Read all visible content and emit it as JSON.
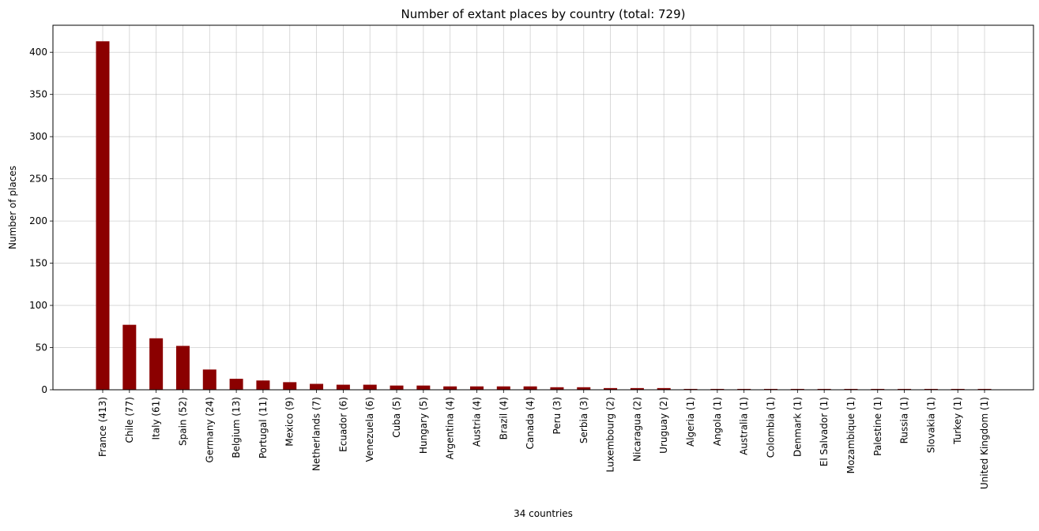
{
  "chart_data": {
    "type": "bar",
    "title": "Number of extant places by country (total: 729)",
    "xlabel": "34 countries",
    "ylabel": "Number of places",
    "ylim": [
      0,
      432
    ],
    "yticks": [
      0,
      50,
      100,
      150,
      200,
      250,
      300,
      350,
      400
    ],
    "grid": true,
    "legend": "none",
    "bar_color": "#8b0000",
    "categories": [
      "France (413)",
      "Chile (77)",
      "Italy (61)",
      "Spain (52)",
      "Germany (24)",
      "Belgium (13)",
      "Portugal (11)",
      "Mexico (9)",
      "Netherlands (7)",
      "Ecuador (6)",
      "Venezuela (6)",
      "Cuba (5)",
      "Hungary (5)",
      "Argentina (4)",
      "Austria (4)",
      "Brazil (4)",
      "Canada (4)",
      "Peru (3)",
      "Serbia (3)",
      "Luxembourg (2)",
      "Nicaragua (2)",
      "Uruguay (2)",
      "Algeria (1)",
      "Angola (1)",
      "Australia (1)",
      "Colombia (1)",
      "Denmark (1)",
      "El Salvador (1)",
      "Mozambique (1)",
      "Palestine (1)",
      "Russia (1)",
      "Slovakia (1)",
      "Turkey (1)",
      "United Kingdom (1)"
    ],
    "values": [
      413,
      77,
      61,
      52,
      24,
      13,
      11,
      9,
      7,
      6,
      6,
      5,
      5,
      4,
      4,
      4,
      4,
      3,
      3,
      2,
      2,
      2,
      1,
      1,
      1,
      1,
      1,
      1,
      1,
      1,
      1,
      1,
      1,
      1
    ]
  }
}
